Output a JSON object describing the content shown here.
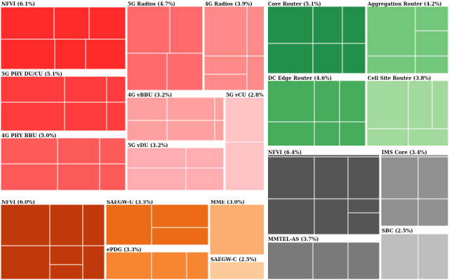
{
  "chart_data": {
    "type": "treemap",
    "groups": [
      {
        "name": "RAN",
        "items": [
          {
            "label": "NFVI (6.1%)",
            "value": 6.1,
            "color": "#ff2a2a"
          },
          {
            "label": "5G PHY DU/CU (5.1%)",
            "value": 5.1,
            "color": "#ff3c3c"
          },
          {
            "label": "4G PHY BBU (5.0%)",
            "value": 5.0,
            "color": "#ff5a5a"
          },
          {
            "label": "5G Radios (4.7%)",
            "value": 4.7,
            "color": "#ff6b6b"
          },
          {
            "label": "4G Radios (3.9%)",
            "value": 3.9,
            "color": "#ff8a8a"
          },
          {
            "label": "4G vBBU (3.2%)",
            "value": 3.2,
            "color": "#ffa0a0"
          },
          {
            "label": "5G vDU (3.2%)",
            "value": 3.2,
            "color": "#ffadb1"
          },
          {
            "label": "5G vCU (2.8%)",
            "value": 2.8,
            "color": "#ffc2c5"
          }
        ]
      },
      {
        "name": "Transport",
        "items": [
          {
            "label": "Core Router (5.1%)",
            "value": 5.1,
            "color": "#248f48"
          },
          {
            "label": "Aggregation Router (4.2%)",
            "value": 4.2,
            "color": "#72c77b"
          },
          {
            "label": "DC Edge Router (4.6%)",
            "value": 4.6,
            "color": "#47ad5c"
          },
          {
            "label": "Cell Site Router (3.8%)",
            "value": 3.8,
            "color": "#a3d99c"
          }
        ]
      },
      {
        "name": "Packet Core",
        "items": [
          {
            "label": "NFVI (6.0%)",
            "value": 6.0,
            "color": "#c0390a"
          },
          {
            "label": "SAEGW-U (3.5%)",
            "value": 3.5,
            "color": "#ec6b17"
          },
          {
            "label": "ePDG (3.3%)",
            "value": 3.3,
            "color": "#f88532"
          },
          {
            "label": "MME (3.0%)",
            "value": 3.0,
            "color": "#fcae70"
          },
          {
            "label": "SAEGW-C (2.5%)",
            "value": 2.5,
            "color": "#fdc99a"
          }
        ]
      },
      {
        "name": "IMS",
        "items": [
          {
            "label": "NFVI (6.4%)",
            "value": 6.4,
            "color": "#555555"
          },
          {
            "label": "IMS Core (3.4%)",
            "value": 3.4,
            "color": "#919191"
          },
          {
            "label": "MMTEL-AS (3.7%)",
            "value": 3.7,
            "color": "#7a7a7a"
          },
          {
            "label": "SBC (2.5%)",
            "value": 2.5,
            "color": "#bdbdbd"
          }
        ]
      }
    ]
  }
}
